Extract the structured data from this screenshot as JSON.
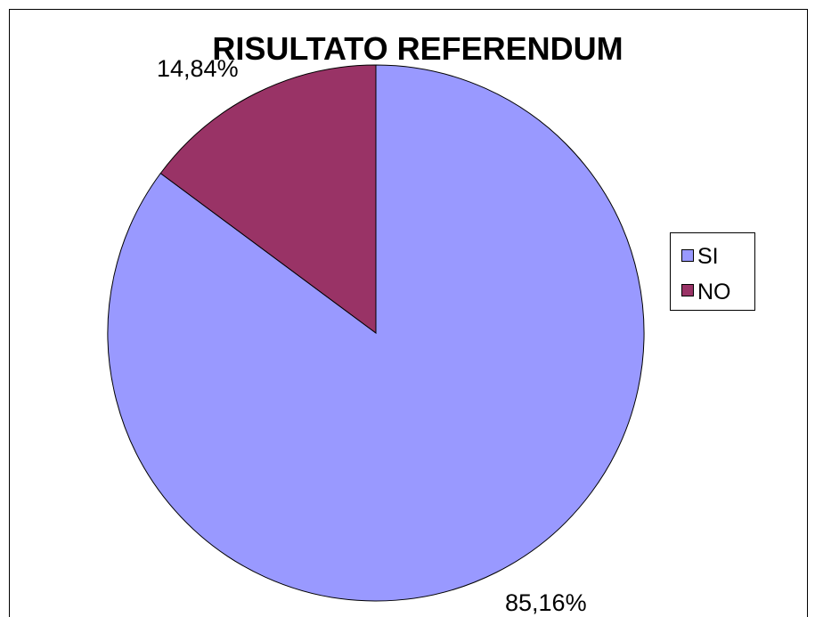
{
  "chart_data": {
    "type": "pie",
    "title": "RISULTATO REFERENDUM",
    "categories": [
      "SI",
      "NO"
    ],
    "values": [
      85.16,
      14.84
    ],
    "data_labels": [
      "85,16%",
      "14,84%"
    ],
    "colors": [
      "#9999ff",
      "#993366"
    ],
    "legend": {
      "position": "right",
      "entries": [
        "SI",
        "NO"
      ]
    }
  }
}
